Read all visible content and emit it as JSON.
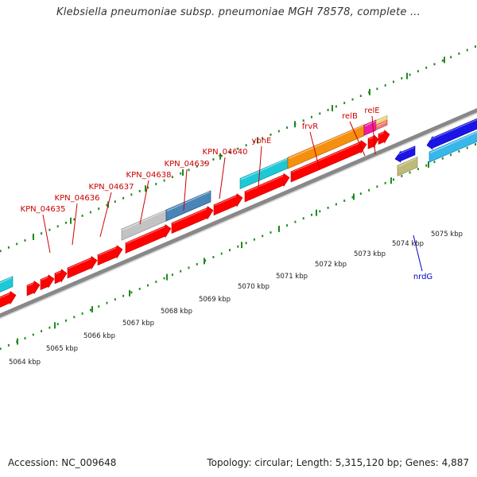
{
  "header": {
    "title": "Klebsiella pneumoniae subsp. pneumoniae MGH 78578, complete ..."
  },
  "footer": {
    "accession": "Accession: NC_009648",
    "stats": "Topology: circular; Length: 5,315,120 bp; Genes: 4,887"
  },
  "colors": {
    "cds": "#ff0000",
    "backbone": "#888888",
    "tick": "#1e8a1e",
    "label_upper": "#cc0000",
    "label_lower": "#0000cc"
  },
  "map": {
    "visible_range_kbp": [
      5063.6,
      5075.8
    ],
    "kbp_ticks": [
      "5064 kbp",
      "5065 kbp",
      "5066 kbp",
      "5067 kbp",
      "5068 kbp",
      "5069 kbp",
      "5070 kbp",
      "5071 kbp",
      "5072 kbp",
      "5073 kbp",
      "5074 kbp",
      "5075 kbp"
    ],
    "upper_labels": [
      {
        "text": "KPN_04635",
        "color": "#cc0000"
      },
      {
        "text": "KPN_04636",
        "color": "#cc0000"
      },
      {
        "text": "KPN_04637",
        "color": "#cc0000"
      },
      {
        "text": "KPN_04638",
        "color": "#cc0000"
      },
      {
        "text": "KPN_04639",
        "color": "#cc0000"
      },
      {
        "text": "KPN_04640",
        "color": "#cc0000"
      },
      {
        "text": "ybhE",
        "color": "#cc0000"
      },
      {
        "text": "frvR",
        "color": "#cc0000"
      },
      {
        "text": "relB",
        "color": "#cc0000"
      },
      {
        "text": "relE",
        "color": "#cc0000"
      }
    ],
    "lower_labels": [
      {
        "text": "nrdG",
        "color": "#0000cc"
      }
    ]
  }
}
